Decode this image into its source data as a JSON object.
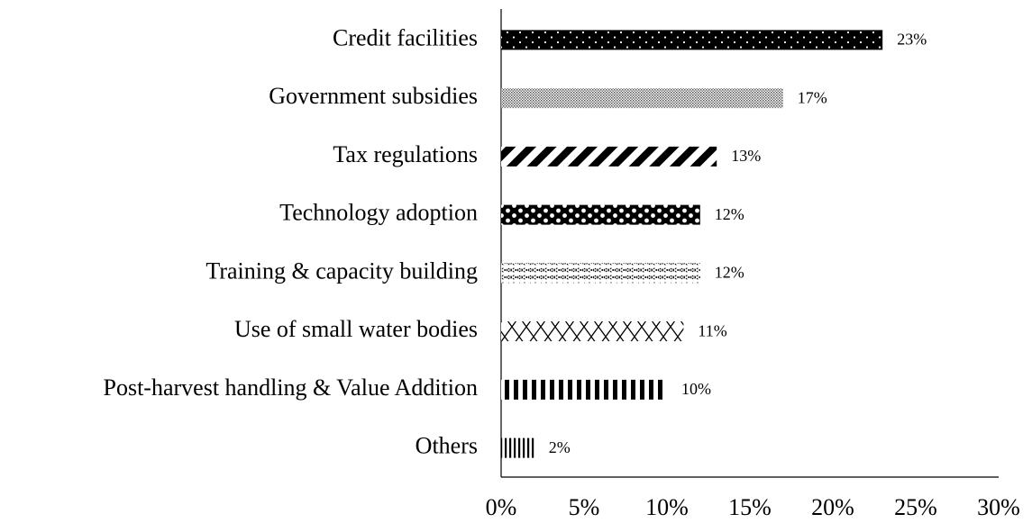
{
  "chart_data": {
    "type": "barh",
    "categories": [
      "Credit facilities",
      "Government subsidies",
      "Tax regulations",
      "Technology adoption",
      "Training & capacity building",
      "Use of small water bodies",
      "Post-harvest handling & Value Addition",
      "Others"
    ],
    "values": [
      23,
      17,
      13,
      12,
      12,
      11,
      10,
      2
    ],
    "value_labels": [
      "23%",
      "17%",
      "13%",
      "12%",
      "12%",
      "11%",
      "10%",
      "2%"
    ],
    "color": "#000000",
    "xlim": [
      0,
      30
    ],
    "xticks": [
      {
        "value": 0,
        "label": "0%"
      },
      {
        "value": 5,
        "label": "5%"
      },
      {
        "value": 10,
        "label": "10%"
      },
      {
        "value": 15,
        "label": "15%"
      },
      {
        "value": 20,
        "label": "20%"
      },
      {
        "value": 25,
        "label": "25%"
      },
      {
        "value": 30,
        "label": "30%"
      }
    ],
    "grid": false
  }
}
